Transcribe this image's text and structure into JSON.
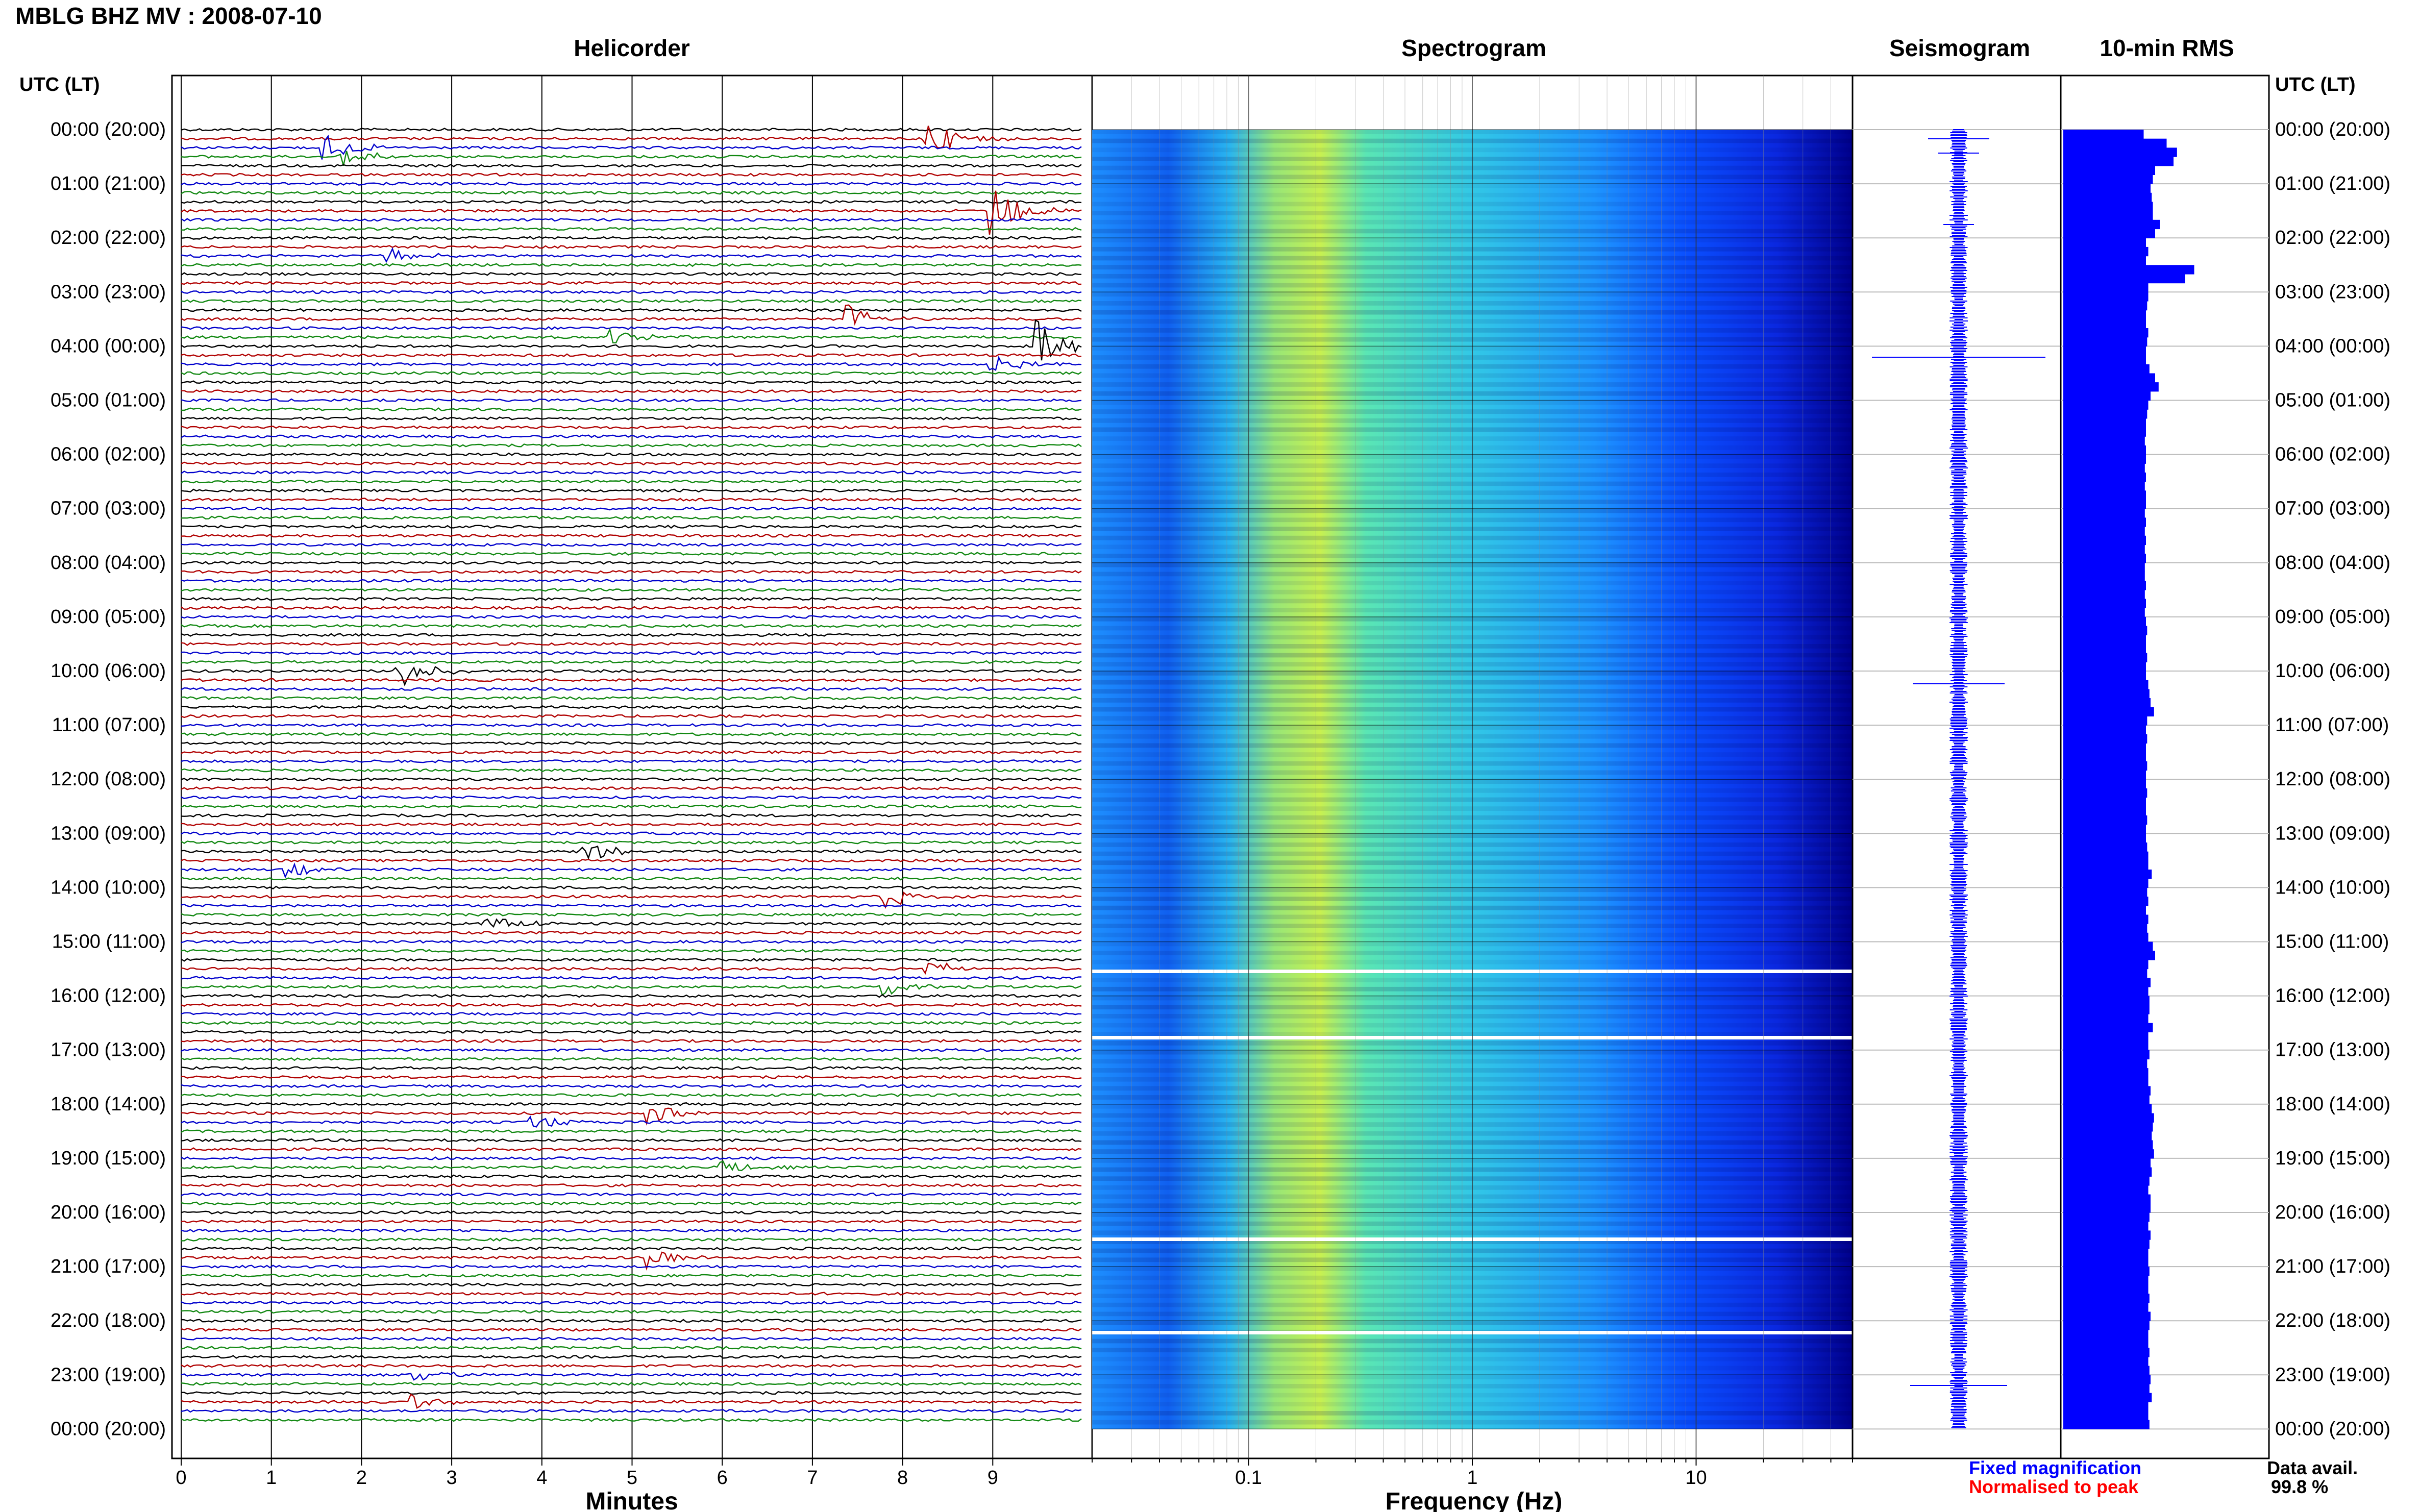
{
  "header": {
    "title": "MBLG BHZ MV : 2008-07-10"
  },
  "panels": {
    "helicorder": "Helicorder",
    "spectrogram": "Spectrogram",
    "seismogram": "Seismogram",
    "rms": "10-min RMS"
  },
  "axes": {
    "time_header": "UTC (LT)",
    "helicorder_xlabel": "Minutes",
    "spectrogram_xlabel": "Frequency (Hz)"
  },
  "legend": {
    "fixed_magnification": "Fixed magnification",
    "normalised_to_peak": "Normalised to peak",
    "data_avail_label": "Data avail.",
    "data_avail_value": "99.8 %"
  },
  "colors": {
    "trace_colors": [
      "#000000",
      "#b00000",
      "#0000cc",
      "#118811"
    ],
    "fixed_magnification": "#0000ff",
    "normalised_to_peak": "#ff0000",
    "rms_bar": "#0000ff"
  },
  "chart_data": [
    {
      "type": "line",
      "title": "Helicorder",
      "xlabel": "Minutes",
      "x_ticks": [
        "0",
        "1",
        "2",
        "3",
        "4",
        "5",
        "6",
        "7",
        "8",
        "9"
      ],
      "xlim": [
        0,
        10
      ],
      "time_labels": [
        "00:00 (20:00)",
        "01:00 (21:00)",
        "02:00 (22:00)",
        "03:00 (23:00)",
        "04:00 (00:00)",
        "05:00 (01:00)",
        "06:00 (02:00)",
        "07:00 (03:00)",
        "08:00 (04:00)",
        "09:00 (05:00)",
        "10:00 (06:00)",
        "11:00 (07:00)",
        "12:00 (08:00)",
        "13:00 (09:00)",
        "14:00 (10:00)",
        "15:00 (11:00)",
        "16:00 (12:00)",
        "17:00 (13:00)",
        "18:00 (14:00)",
        "19:00 (15:00)",
        "20:00 (16:00)",
        "21:00 (17:00)",
        "22:00 (18:00)",
        "23:00 (19:00)",
        "00:00 (20:00)"
      ],
      "traces_per_hour": 6,
      "events": [
        {
          "row": 1,
          "minute": 8.3,
          "amp": 2.0
        },
        {
          "row": 2,
          "minute": 1.6,
          "amp": 1.5
        },
        {
          "row": 3,
          "minute": 1.8,
          "amp": 1.2
        },
        {
          "row": 9,
          "minute": 9.0,
          "amp": 3.0
        },
        {
          "row": 14,
          "minute": 2.3,
          "amp": 0.9
        },
        {
          "row": 21,
          "minute": 7.4,
          "amp": 1.6
        },
        {
          "row": 23,
          "minute": 4.8,
          "amp": 1.0
        },
        {
          "row": 24,
          "minute": 9.5,
          "amp": 3.0
        },
        {
          "row": 26,
          "minute": 9.0,
          "amp": 1.0
        },
        {
          "row": 60,
          "minute": 2.4,
          "amp": 2.0
        },
        {
          "row": 80,
          "minute": 4.5,
          "amp": 1.0
        },
        {
          "row": 82,
          "minute": 1.2,
          "amp": 1.0
        },
        {
          "row": 85,
          "minute": 7.8,
          "amp": 1.3
        },
        {
          "row": 88,
          "minute": 3.4,
          "amp": 1.1
        },
        {
          "row": 93,
          "minute": 8.3,
          "amp": 0.9
        },
        {
          "row": 95,
          "minute": 7.8,
          "amp": 1.0
        },
        {
          "row": 109,
          "minute": 5.2,
          "amp": 1.2
        },
        {
          "row": 115,
          "minute": 6.0,
          "amp": 0.9
        },
        {
          "row": 110,
          "minute": 3.9,
          "amp": 0.9
        },
        {
          "row": 125,
          "minute": 5.2,
          "amp": 1.1
        },
        {
          "row": 138,
          "minute": 2.6,
          "amp": 1.0
        },
        {
          "row": 141,
          "minute": 2.6,
          "amp": 0.8
        }
      ]
    },
    {
      "type": "heatmap",
      "title": "Spectrogram",
      "xlabel": "Frequency (Hz)",
      "x_scale": "log",
      "xlim": [
        0.02,
        50
      ],
      "x_ticks": [
        "0.1",
        "1",
        "10"
      ],
      "colormap": [
        "#0000a0",
        "#0a28ff",
        "#1e90ff",
        "#28c8e6",
        "#5ae6b4",
        "#b4f064",
        "#f0f032"
      ],
      "peak_frequency_hz": 0.25,
      "data_gaps_utc": [
        "15:30",
        "16:40",
        "20:25",
        "22:10"
      ]
    },
    {
      "type": "line",
      "title": "Seismogram",
      "large_spikes_utc": [
        "00:15",
        "04:20",
        "10:20",
        "23:05"
      ]
    },
    {
      "type": "bar",
      "title": "10-min RMS",
      "orientation": "horizontal",
      "bins_per_hour": 6,
      "values": [
        0.7,
        0.9,
        0.99,
        0.96,
        0.8,
        0.78,
        0.76,
        0.77,
        0.78,
        0.78,
        0.84,
        0.8,
        0.72,
        0.74,
        0.72,
        1.14,
        1.06,
        0.74,
        0.74,
        0.73,
        0.72,
        0.72,
        0.74,
        0.73,
        0.72,
        0.72,
        0.75,
        0.8,
        0.83,
        0.76,
        0.74,
        0.73,
        0.72,
        0.72,
        0.71,
        0.72,
        0.72,
        0.71,
        0.72,
        0.71,
        0.72,
        0.72,
        0.71,
        0.72,
        0.71,
        0.72,
        0.71,
        0.72,
        0.71,
        0.71,
        0.72,
        0.71,
        0.72,
        0.71,
        0.72,
        0.73,
        0.72,
        0.72,
        0.73,
        0.72,
        0.72,
        0.74,
        0.75,
        0.76,
        0.79,
        0.73,
        0.72,
        0.73,
        0.72,
        0.72,
        0.73,
        0.72,
        0.72,
        0.73,
        0.72,
        0.72,
        0.73,
        0.72,
        0.72,
        0.73,
        0.74,
        0.74,
        0.77,
        0.74,
        0.73,
        0.74,
        0.72,
        0.74,
        0.73,
        0.74,
        0.78,
        0.8,
        0.74,
        0.73,
        0.76,
        0.74,
        0.75,
        0.75,
        0.74,
        0.78,
        0.74,
        0.74,
        0.75,
        0.73,
        0.74,
        0.74,
        0.76,
        0.75,
        0.77,
        0.79,
        0.78,
        0.77,
        0.78,
        0.79,
        0.76,
        0.77,
        0.75,
        0.74,
        0.76,
        0.76,
        0.75,
        0.74,
        0.76,
        0.75,
        0.74,
        0.74,
        0.75,
        0.74,
        0.74,
        0.75,
        0.74,
        0.76,
        0.75,
        0.74,
        0.74,
        0.75,
        0.74,
        0.75,
        0.76,
        0.75,
        0.77,
        0.74,
        0.74,
        0.75
      ],
      "units": "relative"
    }
  ]
}
